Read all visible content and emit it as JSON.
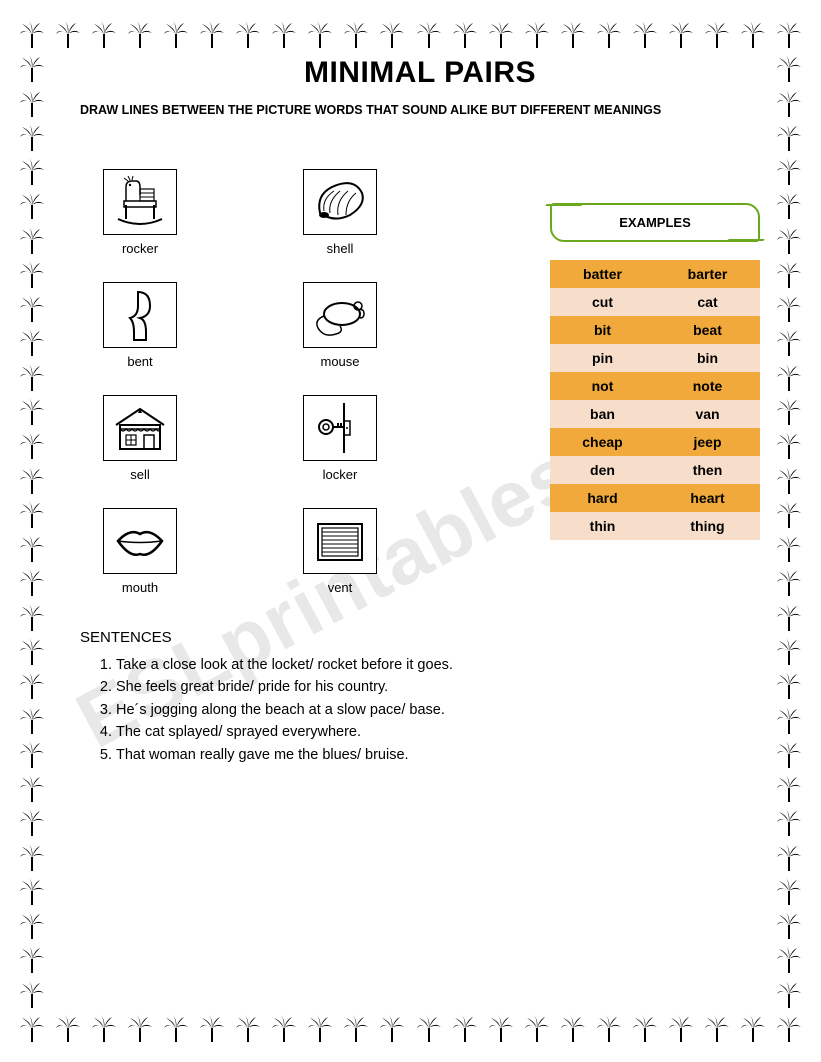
{
  "title": "MINIMAL PAIRS",
  "instructions": "DRAW LINES BETWEEN THE PICTURE WORDS THAT SOUND ALIKE BUT DIFFERENT MEANINGS",
  "left_column": [
    {
      "label": "rocker",
      "icon": "rocker"
    },
    {
      "label": "bent",
      "icon": "bent"
    },
    {
      "label": "sell",
      "icon": "sell"
    },
    {
      "label": "mouth",
      "icon": "mouth"
    }
  ],
  "right_column": [
    {
      "label": "shell",
      "icon": "shell"
    },
    {
      "label": "mouse",
      "icon": "mouse"
    },
    {
      "label": "locker",
      "icon": "locker"
    },
    {
      "label": "vent",
      "icon": "vent"
    }
  ],
  "examples": {
    "header": "EXAMPLES",
    "rows": [
      [
        "batter",
        "barter"
      ],
      [
        "cut",
        "cat"
      ],
      [
        "bit",
        "beat"
      ],
      [
        "pin",
        "bin"
      ],
      [
        "not",
        "note"
      ],
      [
        "ban",
        "van"
      ],
      [
        "cheap",
        "jeep"
      ],
      [
        "den",
        "then"
      ],
      [
        "hard",
        "heart"
      ],
      [
        "thin",
        "thing"
      ]
    ],
    "odd_color": "#f0a93a",
    "even_color": "#f7decb",
    "banner_border": "#6aa81e"
  },
  "sentences": {
    "heading": "SENTENCES",
    "items": [
      "Take a close look at the locket/ rocket before it goes.",
      "She feels great bride/ pride for his country.",
      "He´s jogging along the beach at a slow pace/ base.",
      "The cat splayed/ sprayed everywhere.",
      "That woman really gave me the blues/ bruise."
    ]
  },
  "watermark": "ESLprintables.com",
  "border": {
    "glyph_color": "#000000",
    "count_horizontal": 22,
    "count_vertical": 30
  }
}
